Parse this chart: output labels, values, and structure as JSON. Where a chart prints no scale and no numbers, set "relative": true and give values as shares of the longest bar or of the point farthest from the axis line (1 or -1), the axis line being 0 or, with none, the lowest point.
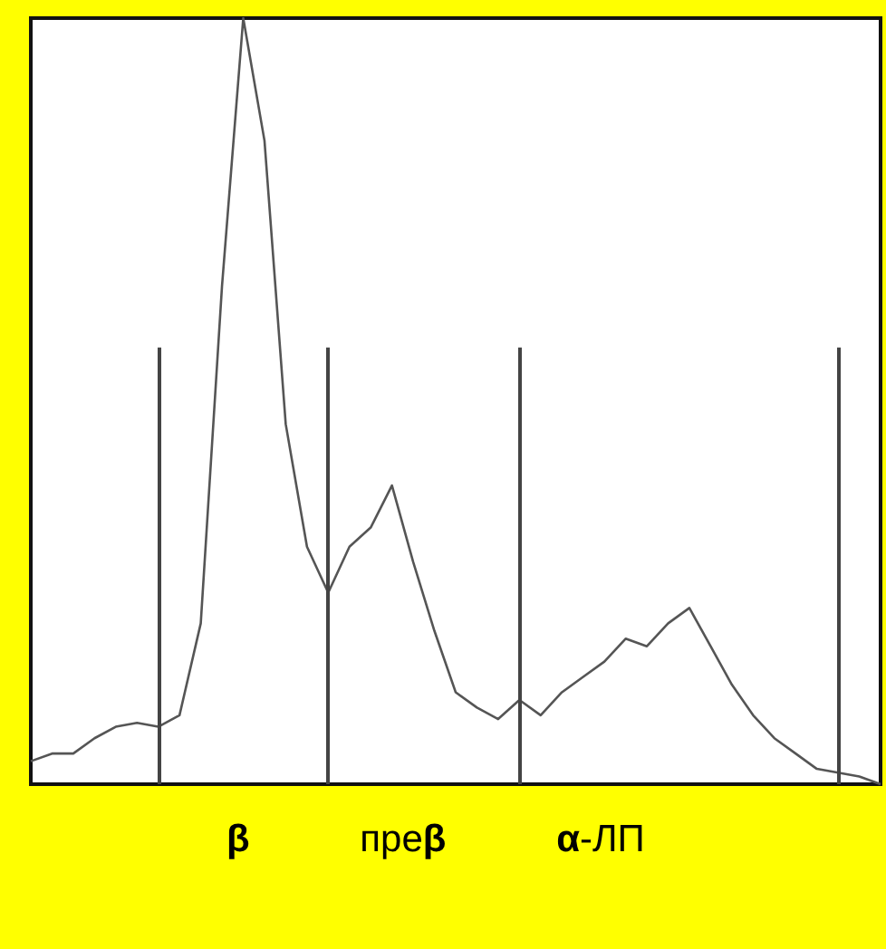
{
  "chart_data": {
    "type": "line",
    "relative": true,
    "xlabel": "β преβ α-ЛП",
    "marker": "none",
    "line_style": "solid",
    "categories": [
      null,
      null,
      null,
      null,
      null,
      null,
      null,
      null,
      null,
      null,
      null,
      null,
      null,
      null,
      null,
      null,
      null,
      null,
      null,
      null,
      null,
      null,
      null,
      null,
      null,
      null,
      null,
      null,
      null,
      null,
      null,
      null,
      null,
      null,
      null,
      null,
      null,
      null,
      null,
      null,
      null
    ],
    "series": [
      {
        "color": "#555555",
        "values": [
          0.03,
          0.04,
          0.04,
          0.06,
          0.075,
          0.08,
          0.075,
          0.09,
          0.21,
          0.65,
          1,
          0.84,
          0.47,
          0.31,
          0.25,
          0.31,
          0.335,
          0.39,
          0.29,
          0.2,
          0.12,
          0.1,
          0.085,
          0.11,
          0.09,
          0.12,
          0.14,
          0.16,
          0.19,
          0.18,
          0.21,
          0.23,
          0.18,
          0.13,
          0.09,
          0.06,
          0.04,
          0.02,
          0.015,
          0.01,
          0
        ]
      }
    ]
  }
}
